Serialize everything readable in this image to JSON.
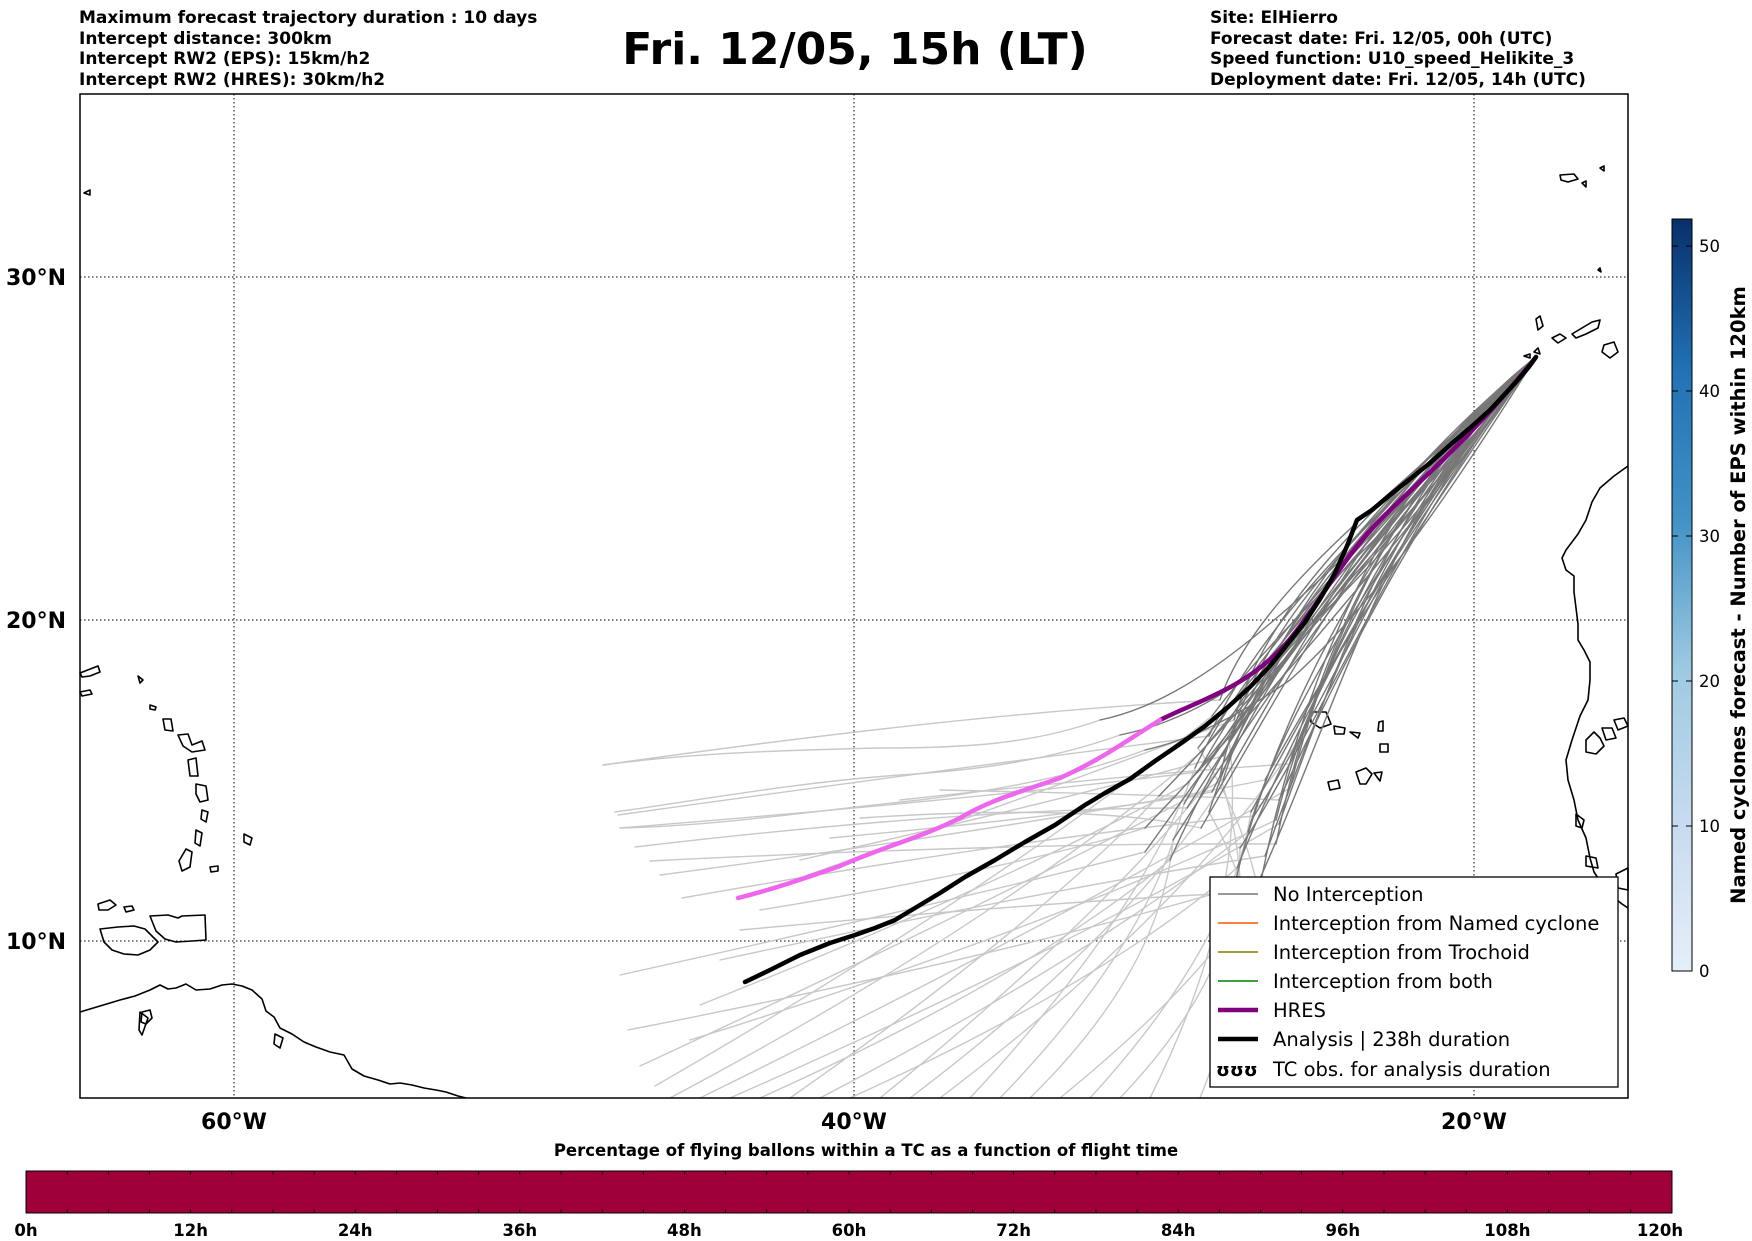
{
  "header": {
    "left_lines": [
      "Maximum forecast trajectory duration : 10 days",
      "Intercept distance: 300km",
      "Intercept RW2 (EPS):  15km/h2",
      "Intercept RW2 (HRES): 30km/h2"
    ],
    "title": "Fri. 12/05, 15h (LT)",
    "right_lines": [
      "Site: ElHierro",
      "Forecast date: Fri. 12/05, 00h (UTC)",
      "Speed function: U10_speed_Helikite_3",
      "Deployment date: Fri. 12/05, 14h (UTC)"
    ]
  },
  "map": {
    "lon_labels": [
      "60°W",
      "40°W",
      "20°W"
    ],
    "lat_labels": [
      "30°N",
      "20°N",
      "10°N"
    ],
    "colors": {
      "no_interception": "#777777",
      "no_interception_far": "#c8c8c8",
      "named_cyclone": "#ff5500",
      "trochoid": "#808000",
      "both": "#008000",
      "hres": "#800080",
      "hres_far": "#ee66ee",
      "analysis": "#000000"
    }
  },
  "legend": {
    "items": [
      "No Interception",
      "Interception from Named cyclone",
      "Interception from Trochoid",
      "Interception from both",
      "HRES",
      "Analysis | 238h duration",
      "TC obs. for analysis duration"
    ],
    "tc_symbol": "ʊʊʊ"
  },
  "colorbar_right": {
    "label": "Named cyclones forecast - Number of EPS within 120km",
    "ticks": [
      "0",
      "10",
      "20",
      "30",
      "40",
      "50"
    ],
    "color_low": "#e6eff9",
    "color_high": "#08306b"
  },
  "colorbar_bottom": {
    "title": "Percentage of flying ballons within a TC as a function of flight time",
    "ticks": [
      "0h",
      "12h",
      "24h",
      "36h",
      "48h",
      "60h",
      "72h",
      "84h",
      "96h",
      "108h",
      "120h"
    ],
    "color": "#a0003a"
  }
}
